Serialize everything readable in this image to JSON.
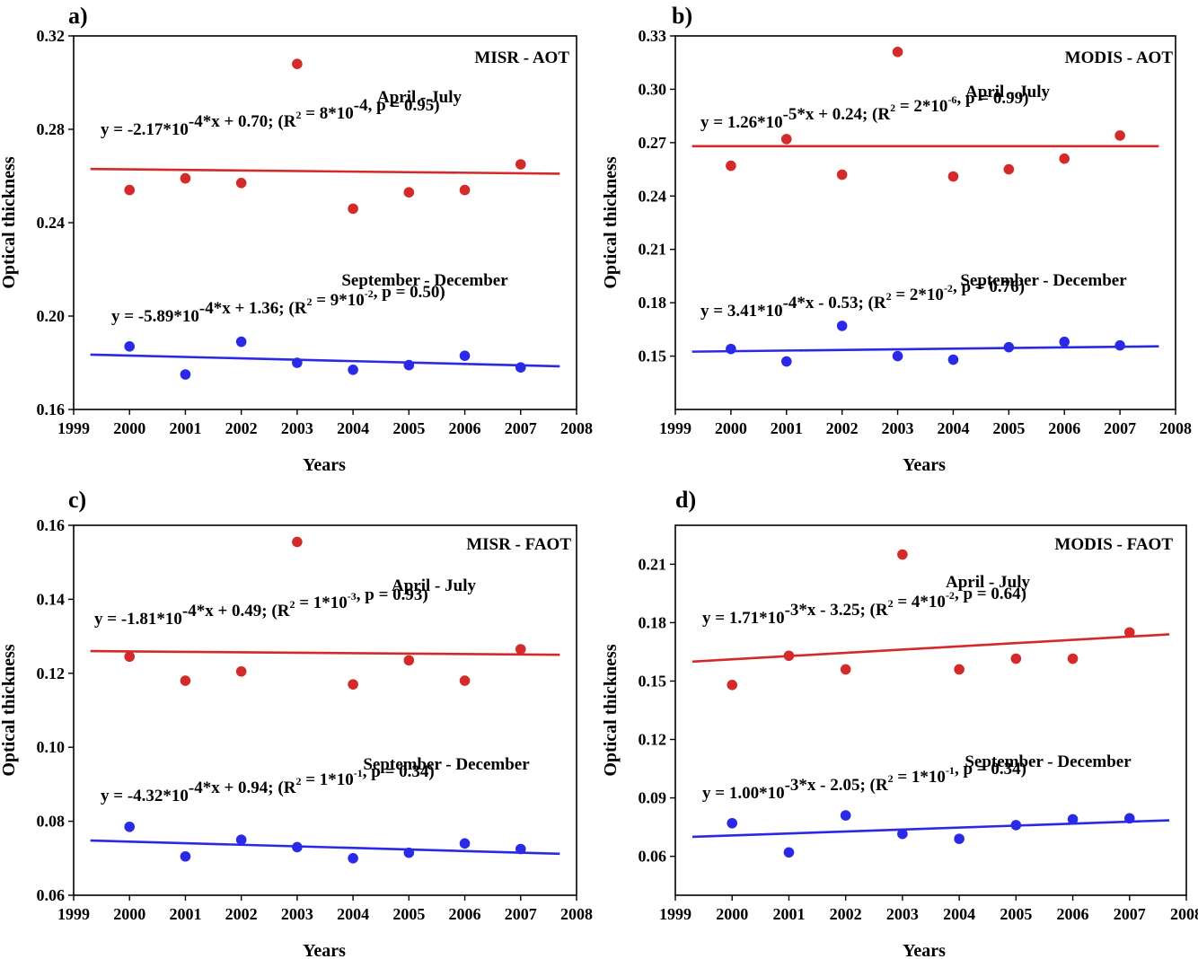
{
  "chart_data": [
    {
      "type": "scatter",
      "panel_label": "a)",
      "panel_title": "MISR - AOT",
      "xlabel": "Years",
      "ylabel": "Optical thickness",
      "xlim": [
        1999,
        2008
      ],
      "ylim": [
        0.16,
        0.32
      ],
      "xticks": [
        1999,
        2000,
        2001,
        2002,
        2003,
        2004,
        2005,
        2006,
        2007,
        2008
      ],
      "yticks": [
        "0.16",
        "0.20",
        "0.24",
        "0.28",
        "0.32"
      ],
      "series": [
        {
          "name": "April - July",
          "color": "#d42a2a",
          "x": [
            2000,
            2001,
            2002,
            2003,
            2004,
            2005,
            2006,
            2007
          ],
          "y": [
            0.254,
            0.259,
            0.257,
            0.308,
            0.246,
            0.253,
            0.254,
            0.265
          ],
          "fit": {
            "x": [
              1999.3,
              2007.7
            ],
            "y": [
              0.263,
              0.261
            ]
          },
          "equation": {
            "pre": "y = -2.17*10",
            "exp": "-4",
            "mid": "*x + 0.70;   (R",
            "r2exp": "2",
            "post": " = 8*10",
            "post_exp": "-4",
            "tail": ",  p = 0.95)"
          }
        },
        {
          "name": "September - December",
          "color": "#2a2ae6",
          "x": [
            2000,
            2001,
            2002,
            2003,
            2004,
            2005,
            2006,
            2007
          ],
          "y": [
            0.187,
            0.175,
            0.189,
            0.18,
            0.177,
            0.179,
            0.183,
            0.178
          ],
          "fit": {
            "x": [
              1999.3,
              2007.7
            ],
            "y": [
              0.1835,
              0.1785
            ]
          },
          "equation": {
            "pre": "y = -5.89*10",
            "exp": "-4",
            "mid": "*x + 1.36;   (R",
            "r2exp": "2",
            "post": " = 9*10",
            "post_exp": "-2",
            "tail": ",  p = 0.50)"
          }
        }
      ]
    },
    {
      "type": "scatter",
      "panel_label": "b)",
      "panel_title": "MODIS - AOT",
      "xlabel": "Years",
      "ylabel": "Optical thickness",
      "xlim": [
        1999,
        2008
      ],
      "ylim": [
        0.12,
        0.33
      ],
      "xticks": [
        1999,
        2000,
        2001,
        2002,
        2003,
        2004,
        2005,
        2006,
        2007,
        2008
      ],
      "yticks": [
        "0.15",
        "0.18",
        "0.21",
        "0.24",
        "0.27",
        "0.30",
        "0.33"
      ],
      "series": [
        {
          "name": "April - July",
          "color": "#d42a2a",
          "x": [
            2000,
            2001,
            2002,
            2003,
            2004,
            2005,
            2006,
            2007
          ],
          "y": [
            0.257,
            0.272,
            0.252,
            0.321,
            0.251,
            0.255,
            0.261,
            0.274
          ],
          "fit": {
            "x": [
              1999.3,
              2007.7
            ],
            "y": [
              0.268,
              0.268
            ]
          },
          "equation": {
            "pre": "y = 1.26*10",
            "exp": "-5",
            "mid": "*x + 0.24;   (R",
            "r2exp": "2",
            "post": " = 2*10",
            "post_exp": "-6",
            "tail": ",  p = 0.99)"
          }
        },
        {
          "name": "September - December",
          "color": "#2a2ae6",
          "x": [
            2000,
            2001,
            2002,
            2003,
            2004,
            2005,
            2006,
            2007
          ],
          "y": [
            0.154,
            0.147,
            0.167,
            0.15,
            0.148,
            0.155,
            0.158,
            0.156
          ],
          "fit": {
            "x": [
              1999.3,
              2007.7
            ],
            "y": [
              0.1525,
              0.1555
            ]
          },
          "equation": {
            "pre": "y = 3.41*10",
            "exp": "-4",
            "mid": "*x - 0.53;   (R",
            "r2exp": "2",
            "post": " = 2*10",
            "post_exp": "-2",
            "tail": ",  p = 0.76)"
          }
        }
      ]
    },
    {
      "type": "scatter",
      "panel_label": "c)",
      "panel_title": "MISR - FAOT",
      "xlabel": "Years",
      "ylabel": "Optical thickness",
      "xlim": [
        1999,
        2008
      ],
      "ylim": [
        0.06,
        0.16
      ],
      "xticks": [
        1999,
        2000,
        2001,
        2002,
        2003,
        2004,
        2005,
        2006,
        2007,
        2008
      ],
      "yticks": [
        "0.06",
        "0.08",
        "0.10",
        "0.12",
        "0.14",
        "0.16"
      ],
      "series": [
        {
          "name": "April - July",
          "color": "#d42a2a",
          "x": [
            2000,
            2001,
            2002,
            2003,
            2004,
            2005,
            2006,
            2007
          ],
          "y": [
            0.1245,
            0.118,
            0.1205,
            0.1555,
            0.117,
            0.1235,
            0.118,
            0.1265
          ],
          "fit": {
            "x": [
              1999.3,
              2007.7
            ],
            "y": [
              0.126,
              0.125
            ]
          },
          "equation": {
            "pre": "y = -1.81*10",
            "exp": "-4",
            "mid": "*x + 0.49;   (R",
            "r2exp": "2",
            "post": " = 1*10",
            "post_exp": "-3",
            "tail": ",  p = 0.93)"
          }
        },
        {
          "name": "September - December",
          "color": "#2a2ae6",
          "x": [
            2000,
            2001,
            2002,
            2003,
            2004,
            2005,
            2006,
            2007
          ],
          "y": [
            0.0785,
            0.0705,
            0.075,
            0.073,
            0.07,
            0.0715,
            0.074,
            0.0725
          ],
          "fit": {
            "x": [
              1999.3,
              2007.7
            ],
            "y": [
              0.0748,
              0.0712
            ]
          },
          "equation": {
            "pre": "y = -4.32*10",
            "exp": "-4",
            "mid": "*x + 0.94;   (R",
            "r2exp": "2",
            "post": " = 1*10",
            "post_exp": "-1",
            "tail": ",  p = 0.34)"
          }
        }
      ]
    },
    {
      "type": "scatter",
      "panel_label": "d)",
      "panel_title": "MODIS - FAOT",
      "xlabel": "Years",
      "ylabel": "Optical thickness",
      "xlim": [
        1999,
        2008
      ],
      "ylim": [
        0.04,
        0.23
      ],
      "xticks": [
        1999,
        2000,
        2001,
        2002,
        2003,
        2004,
        2005,
        2006,
        2007,
        2008
      ],
      "yticks": [
        "0.06",
        "0.09",
        "0.12",
        "0.15",
        "0.18",
        "0.21"
      ],
      "series": [
        {
          "name": "April - July",
          "color": "#d42a2a",
          "x": [
            2000,
            2001,
            2002,
            2003,
            2004,
            2005,
            2006,
            2007
          ],
          "y": [
            0.148,
            0.163,
            0.156,
            0.215,
            0.156,
            0.1615,
            0.1615,
            0.175
          ],
          "fit": {
            "x": [
              1999.3,
              2007.7
            ],
            "y": [
              0.16,
              0.174
            ]
          },
          "equation": {
            "pre": "y =  1.71*10",
            "exp": "-3",
            "mid": "*x - 3.25;   (R",
            "r2exp": "2",
            "post": " = 4*10",
            "post_exp": "-2",
            "tail": ",  p = 0.64)"
          }
        },
        {
          "name": "September - December",
          "color": "#2a2ae6",
          "x": [
            2000,
            2001,
            2002,
            2003,
            2004,
            2005,
            2006,
            2007
          ],
          "y": [
            0.077,
            0.062,
            0.081,
            0.0715,
            0.069,
            0.076,
            0.079,
            0.0795
          ],
          "fit": {
            "x": [
              1999.3,
              2007.7
            ],
            "y": [
              0.07,
              0.0785
            ]
          },
          "equation": {
            "pre": "y = 1.00*10",
            "exp": "-3",
            "mid": "*x - 2.05;   (R",
            "r2exp": "2",
            "post": " = 1*10",
            "post_exp": "-1",
            "tail": ",  p = 0.34)"
          }
        }
      ]
    }
  ]
}
